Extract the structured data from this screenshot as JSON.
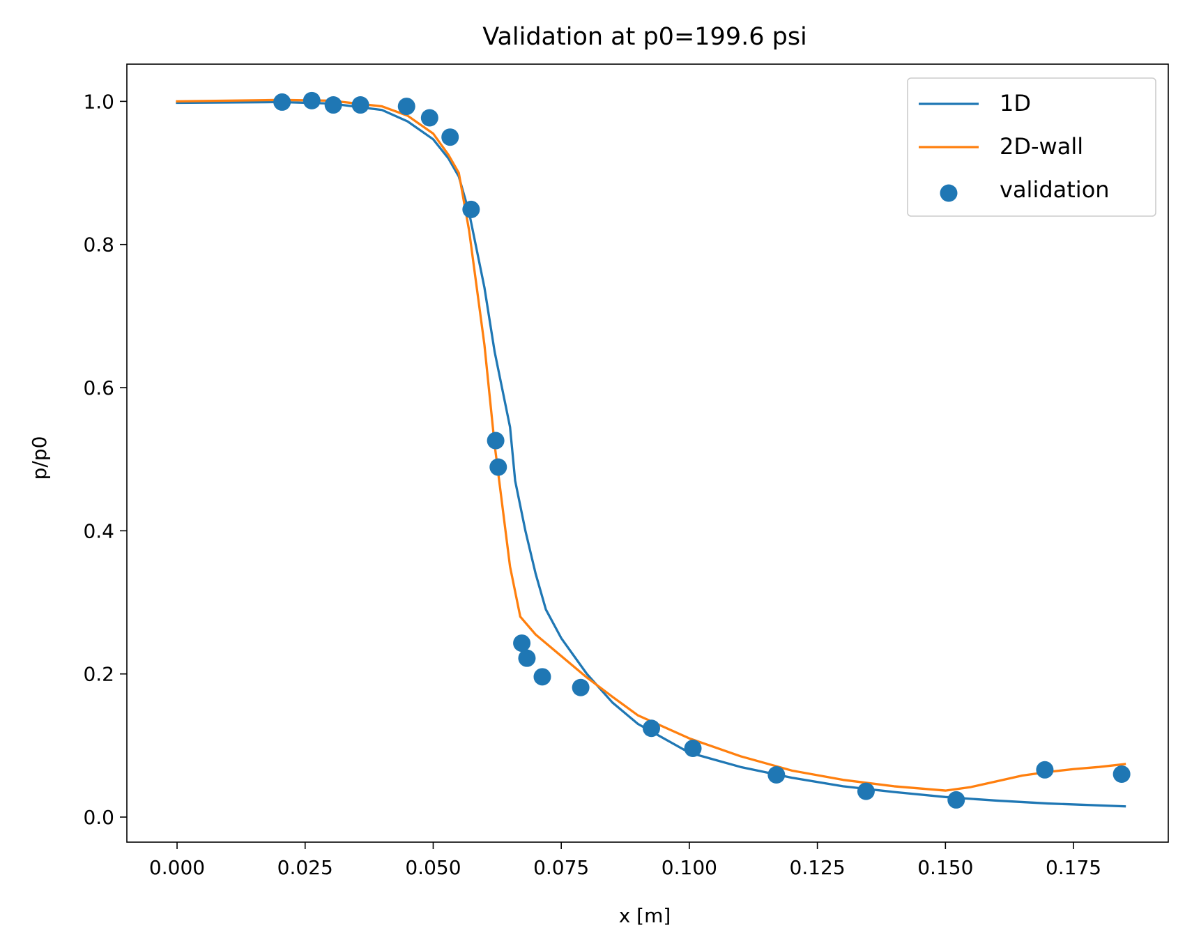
{
  "chart_data": {
    "type": "line",
    "title": "Validation at p0=199.6 psi",
    "xlabel": "x [m]",
    "ylabel": "p/p0",
    "xlim": [
      -0.0098,
      0.1935
    ],
    "ylim": [
      -0.035,
      1.052
    ],
    "grid": false,
    "legend_position": "top-right",
    "x_ticks": [
      0.0,
      0.025,
      0.05,
      0.075,
      0.1,
      0.125,
      0.15,
      0.175
    ],
    "x_tick_labels": [
      "0.000",
      "0.025",
      "0.050",
      "0.075",
      "0.100",
      "0.125",
      "0.150",
      "0.175"
    ],
    "y_ticks": [
      0.0,
      0.2,
      0.4,
      0.6,
      0.8,
      1.0
    ],
    "y_tick_labels": [
      "0.0",
      "0.2",
      "0.4",
      "0.6",
      "0.8",
      "1.0"
    ],
    "series": [
      {
        "name": "1D",
        "kind": "line",
        "color": "#1f77b4",
        "x": [
          0.0,
          0.02,
          0.03,
          0.04,
          0.045,
          0.05,
          0.053,
          0.055,
          0.057,
          0.06,
          0.062,
          0.065,
          0.066,
          0.068,
          0.07,
          0.072,
          0.075,
          0.08,
          0.085,
          0.09,
          0.1,
          0.11,
          0.12,
          0.13,
          0.14,
          0.15,
          0.16,
          0.17,
          0.185
        ],
        "y": [
          0.998,
          0.999,
          0.997,
          0.988,
          0.972,
          0.947,
          0.92,
          0.895,
          0.845,
          0.74,
          0.65,
          0.545,
          0.47,
          0.4,
          0.34,
          0.29,
          0.25,
          0.2,
          0.16,
          0.13,
          0.09,
          0.07,
          0.055,
          0.043,
          0.035,
          0.028,
          0.023,
          0.019,
          0.015
        ]
      },
      {
        "name": "2D-wall",
        "kind": "line",
        "color": "#ff7f0e",
        "x": [
          0.0,
          0.02,
          0.03,
          0.04,
          0.045,
          0.05,
          0.053,
          0.055,
          0.057,
          0.06,
          0.062,
          0.065,
          0.067,
          0.07,
          0.075,
          0.08,
          0.085,
          0.09,
          0.1,
          0.11,
          0.12,
          0.13,
          0.14,
          0.15,
          0.155,
          0.16,
          0.165,
          0.17,
          0.175,
          0.18,
          0.185
        ],
        "y": [
          1.0,
          1.002,
          1.001,
          0.993,
          0.98,
          0.955,
          0.925,
          0.9,
          0.82,
          0.66,
          0.52,
          0.35,
          0.28,
          0.255,
          0.225,
          0.195,
          0.168,
          0.142,
          0.11,
          0.085,
          0.065,
          0.052,
          0.043,
          0.037,
          0.042,
          0.05,
          0.058,
          0.063,
          0.067,
          0.07,
          0.074
        ]
      },
      {
        "name": "validation",
        "kind": "scatter",
        "color": "#1f77b4",
        "x": [
          0.0205,
          0.0263,
          0.0305,
          0.0358,
          0.0448,
          0.0493,
          0.0533,
          0.0574,
          0.0622,
          0.0627,
          0.0673,
          0.0683,
          0.0713,
          0.0788,
          0.0926,
          0.1007,
          0.117,
          0.1345,
          0.1521,
          0.1694,
          0.1844
        ],
        "y": [
          0.999,
          1.001,
          0.995,
          0.995,
          0.993,
          0.977,
          0.95,
          0.849,
          0.526,
          0.489,
          0.243,
          0.222,
          0.196,
          0.181,
          0.124,
          0.096,
          0.059,
          0.036,
          0.024,
          0.066,
          0.06
        ]
      }
    ]
  }
}
